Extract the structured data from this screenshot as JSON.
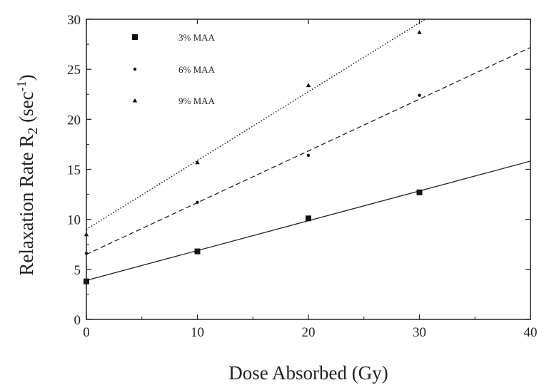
{
  "chart_data": {
    "type": "scatter",
    "xlabel": "Dose Absorbed (Gy)",
    "ylabel": "Relaxation Rate R",
    "ylabel_sub": "2",
    "ylabel_unit_pre": " (sec",
    "ylabel_unit_sup": "-1",
    "ylabel_unit_post": ")",
    "xlim": [
      0,
      40
    ],
    "ylim": [
      0,
      30
    ],
    "xticks": [
      "0",
      "10",
      "20",
      "30",
      "40"
    ],
    "yticks": [
      "0",
      "5",
      "10",
      "15",
      "20",
      "25",
      "30"
    ],
    "grid": false,
    "legend_position": "top-left",
    "series": [
      {
        "name": "3% MAA",
        "marker": "square",
        "line_style": "solid",
        "x": [
          0,
          10,
          20,
          30
        ],
        "y": [
          3.8,
          6.8,
          10.1,
          12.7
        ],
        "fit": {
          "intercept": 3.9,
          "slope": 0.298
        }
      },
      {
        "name": "6% MAA",
        "marker": "dot",
        "line_style": "dashed",
        "x": [
          0,
          10,
          20,
          30
        ],
        "y": [
          6.6,
          11.7,
          16.4,
          22.4
        ],
        "fit": {
          "intercept": 6.5,
          "slope": 0.517
        }
      },
      {
        "name": "9% MAA",
        "marker": "triangle",
        "line_style": "dotted",
        "x": [
          0,
          10,
          20,
          30
        ],
        "y": [
          8.5,
          15.7,
          23.4,
          28.7
        ],
        "fit": {
          "intercept": 9.0,
          "slope": 0.688
        }
      }
    ]
  }
}
